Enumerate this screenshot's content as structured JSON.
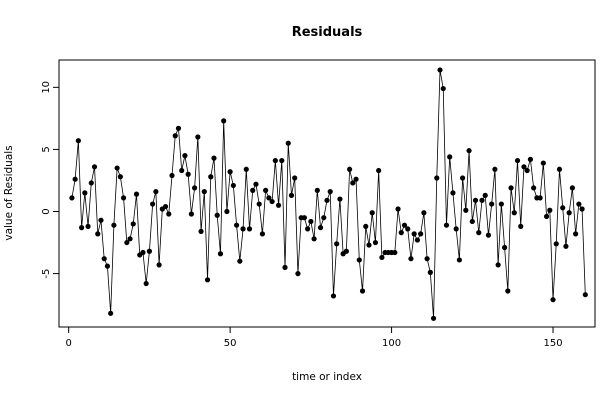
{
  "chart_data": {
    "type": "line",
    "title": "Residuals",
    "xlabel": "time or index",
    "ylabel": "value of Residuals",
    "xlim": [
      -3,
      163
    ],
    "ylim": [
      -9.3,
      12.2
    ],
    "xticks": [
      0,
      50,
      100,
      150
    ],
    "yticks": [
      -5,
      0,
      5,
      10
    ],
    "grid": false,
    "legend": "none",
    "line_color": "#000000",
    "point_color": "#000000",
    "series": [
      {
        "values": [
          1.1,
          2.6,
          5.7,
          -1.3,
          1.5,
          -1.2,
          2.3,
          3.6,
          -1.8,
          -0.7,
          -3.8,
          -4.4,
          -8.2,
          -1.1,
          3.5,
          2.8,
          1.1,
          -2.5,
          -2.2,
          -1.0,
          1.4,
          -3.5,
          -3.3,
          -5.8,
          -3.2,
          0.6,
          1.6,
          -4.3,
          0.2,
          0.4,
          -0.2,
          2.9,
          6.1,
          6.7,
          3.3,
          4.5,
          3.0,
          -0.2,
          1.9,
          6.0,
          -1.6,
          1.6,
          -5.5,
          2.8,
          4.3,
          -0.3,
          -3.4,
          7.3,
          0.0,
          3.2,
          2.1,
          -1.1,
          -4.0,
          -1.4,
          3.4,
          -1.4,
          1.7,
          2.2,
          0.6,
          -1.8,
          1.7,
          1.1,
          0.8,
          4.1,
          0.5,
          4.1,
          -4.5,
          5.5,
          1.3,
          2.7,
          -5.0,
          -0.5,
          -0.5,
          -1.4,
          -0.8,
          -2.2,
          1.7,
          -1.3,
          -0.5,
          0.9,
          1.6,
          -6.8,
          -2.6,
          1.0,
          -3.4,
          -3.2,
          3.4,
          2.3,
          2.6,
          -3.9,
          -6.4,
          -1.2,
          -2.7,
          -0.1,
          -2.5,
          3.3,
          -3.7,
          -3.3,
          -3.3,
          -3.3,
          -3.3,
          0.2,
          -1.7,
          -1.1,
          -1.4,
          -3.8,
          -1.8,
          -2.3,
          -1.8,
          -0.1,
          -3.8,
          -4.9,
          -8.6,
          2.7,
          11.4,
          9.9,
          -1.1,
          4.4,
          1.5,
          -1.4,
          -3.9,
          2.7,
          0.1,
          4.9,
          -0.8,
          0.9,
          -1.7,
          0.9,
          1.3,
          -1.9,
          0.6,
          3.4,
          -4.3,
          0.6,
          -2.9,
          -6.4,
          1.9,
          -0.1,
          4.1,
          -1.2,
          3.6,
          3.3,
          4.2,
          1.9,
          1.1,
          1.1,
          3.9,
          -0.4,
          0.1,
          -7.1,
          -2.6,
          3.4,
          0.3,
          -2.8,
          -0.1,
          1.9,
          -1.8,
          0.6,
          0.2,
          -6.7
        ]
      }
    ]
  }
}
